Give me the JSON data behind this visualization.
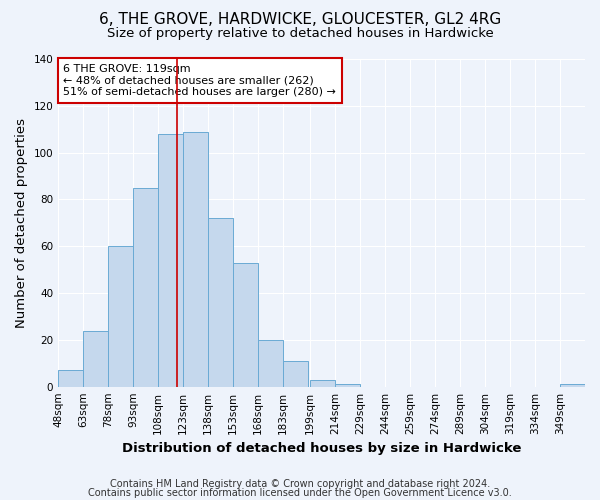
{
  "title": "6, THE GROVE, HARDWICKE, GLOUCESTER, GL2 4RG",
  "subtitle": "Size of property relative to detached houses in Hardwicke",
  "xlabel": "Distribution of detached houses by size in Hardwicke",
  "ylabel": "Number of detached properties",
  "bin_labels": [
    "48sqm",
    "63sqm",
    "78sqm",
    "93sqm",
    "108sqm",
    "123sqm",
    "138sqm",
    "153sqm",
    "168sqm",
    "183sqm",
    "199sqm",
    "214sqm",
    "229sqm",
    "244sqm",
    "259sqm",
    "274sqm",
    "289sqm",
    "304sqm",
    "319sqm",
    "334sqm",
    "349sqm"
  ],
  "bin_edges": [
    48,
    63,
    78,
    93,
    108,
    123,
    138,
    153,
    168,
    183,
    199,
    214,
    229,
    244,
    259,
    274,
    289,
    304,
    319,
    334,
    349
  ],
  "bar_heights": [
    7,
    24,
    60,
    85,
    108,
    109,
    72,
    53,
    20,
    11,
    3,
    1,
    0,
    0,
    0,
    0,
    0,
    0,
    0,
    0,
    1
  ],
  "bar_color": "#c5d8ed",
  "bar_edge_color": "#6aaad4",
  "property_line_x": 119,
  "property_line_color": "#cc0000",
  "annotation_text": "6 THE GROVE: 119sqm\n← 48% of detached houses are smaller (262)\n51% of semi-detached houses are larger (280) →",
  "annotation_box_color": "#ffffff",
  "annotation_box_edge_color": "#cc0000",
  "ylim": [
    0,
    140
  ],
  "yticks": [
    0,
    20,
    40,
    60,
    80,
    100,
    120,
    140
  ],
  "footer_line1": "Contains HM Land Registry data © Crown copyright and database right 2024.",
  "footer_line2": "Contains public sector information licensed under the Open Government Licence v3.0.",
  "background_color": "#eef3fb",
  "grid_color": "#ffffff",
  "title_fontsize": 11,
  "subtitle_fontsize": 9.5,
  "axis_label_fontsize": 9.5,
  "tick_fontsize": 7.5,
  "footer_fontsize": 7,
  "annotation_fontsize": 8
}
